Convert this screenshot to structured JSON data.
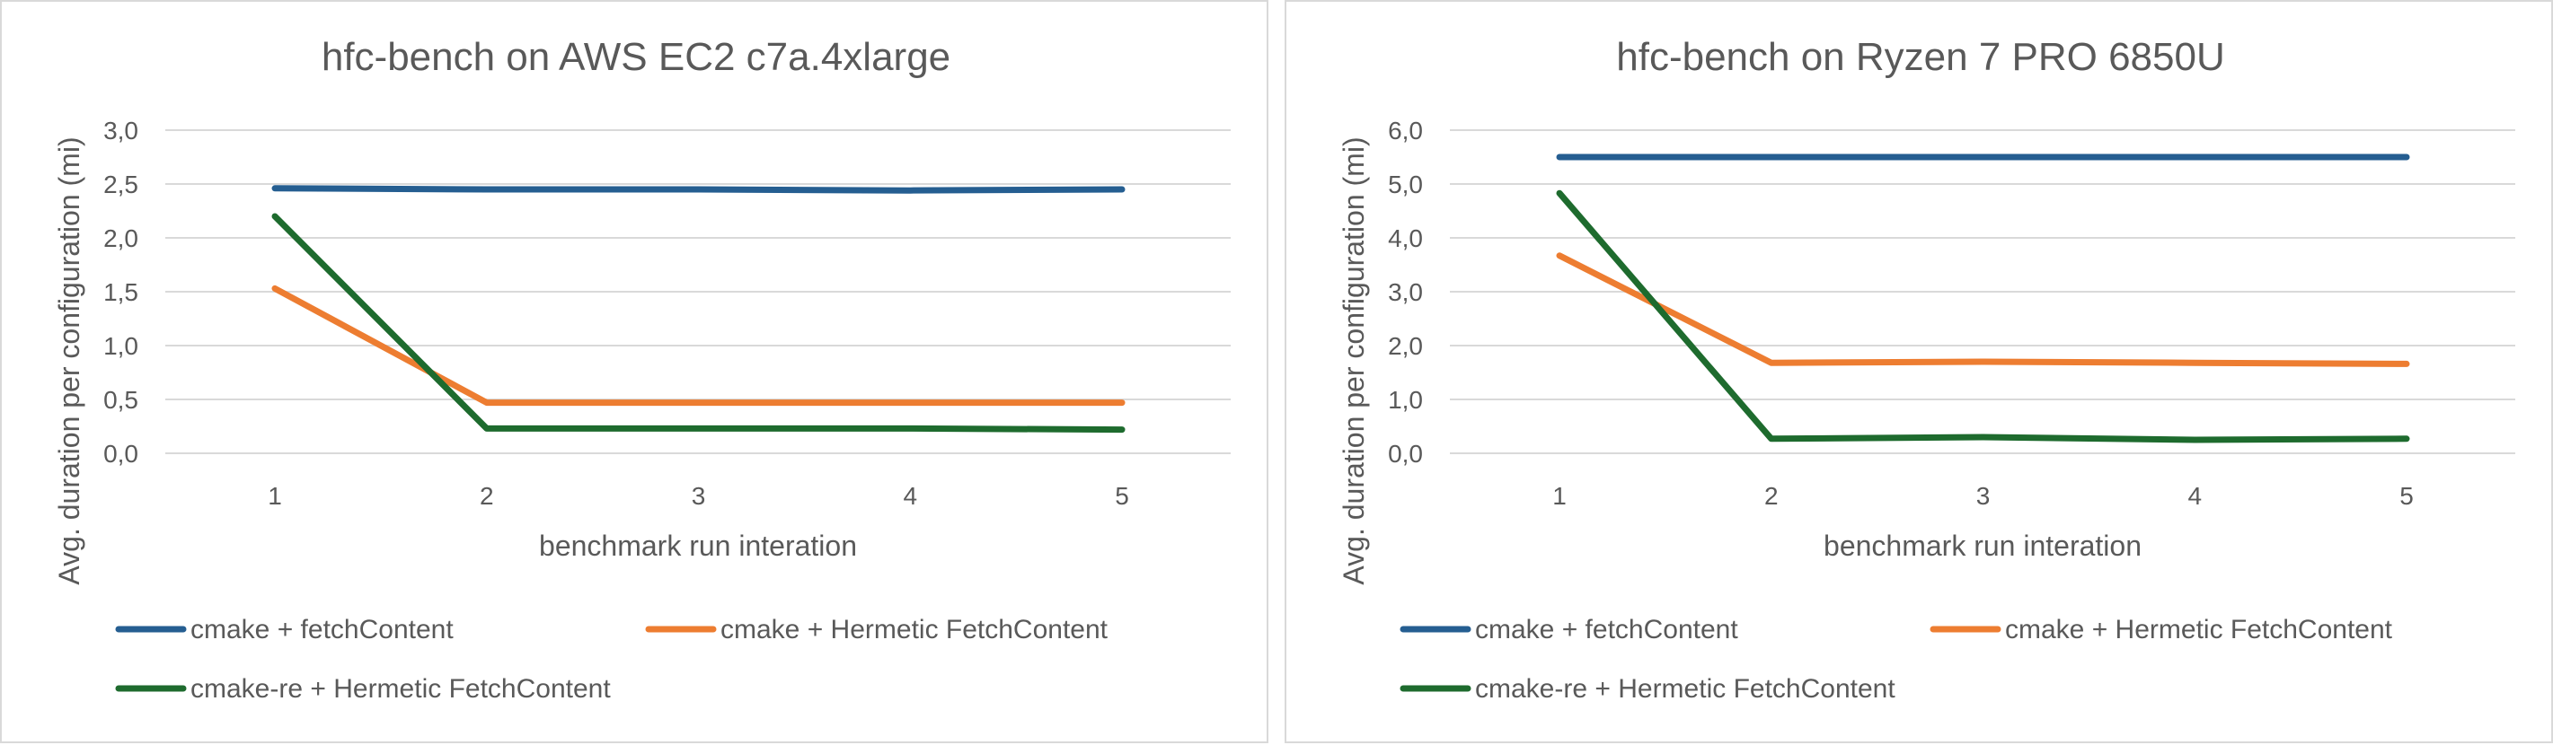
{
  "colors": {
    "series_fetch": "#255e91",
    "series_hermetic": "#ed7d31",
    "series_re": "#1e6b2e",
    "text": "#595959",
    "grid": "#d9d9d9"
  },
  "chart_data": [
    {
      "type": "line",
      "title": "hfc-bench on AWS EC2 c7a.4xlarge",
      "xlabel": "benchmark run interation",
      "ylabel": "Avg. duration per configuration (mi)",
      "x": [
        "1",
        "2",
        "3",
        "4",
        "5"
      ],
      "ylim": [
        0,
        3.0
      ],
      "yticks": [
        "0,0",
        "0,5",
        "1,0",
        "1,5",
        "2,0",
        "2,5",
        "3,0"
      ],
      "grid": true,
      "legend_position": "bottom",
      "series": [
        {
          "name": "cmake + fetchContent",
          "color_key": "series_fetch",
          "values": [
            2.46,
            2.45,
            2.45,
            2.44,
            2.45
          ]
        },
        {
          "name": "cmake + Hermetic FetchContent",
          "color_key": "series_hermetic",
          "values": [
            1.53,
            0.47,
            0.47,
            0.47,
            0.47
          ]
        },
        {
          "name": "cmake-re + Hermetic FetchContent",
          "color_key": "series_re",
          "values": [
            2.2,
            0.23,
            0.23,
            0.23,
            0.22
          ]
        }
      ]
    },
    {
      "type": "line",
      "title": "hfc-bench on  Ryzen 7 PRO 6850U",
      "xlabel": "benchmark run interation",
      "ylabel": "Avg. duration per configuration (mi)",
      "x": [
        "1",
        "2",
        "3",
        "4",
        "5"
      ],
      "ylim": [
        0,
        6.0
      ],
      "yticks": [
        "0,0",
        "1,0",
        "2,0",
        "3,0",
        "4,0",
        "5,0",
        "6,0"
      ],
      "grid": true,
      "legend_position": "bottom",
      "series": [
        {
          "name": "cmake + fetchContent",
          "color_key": "series_fetch",
          "values": [
            5.5,
            5.5,
            5.5,
            5.5,
            5.5
          ]
        },
        {
          "name": "cmake + Hermetic FetchContent",
          "color_key": "series_hermetic",
          "values": [
            3.67,
            1.68,
            1.7,
            1.68,
            1.66
          ]
        },
        {
          "name": "cmake-re + Hermetic FetchContent",
          "color_key": "series_re",
          "values": [
            4.83,
            0.27,
            0.3,
            0.25,
            0.27
          ]
        }
      ]
    }
  ]
}
